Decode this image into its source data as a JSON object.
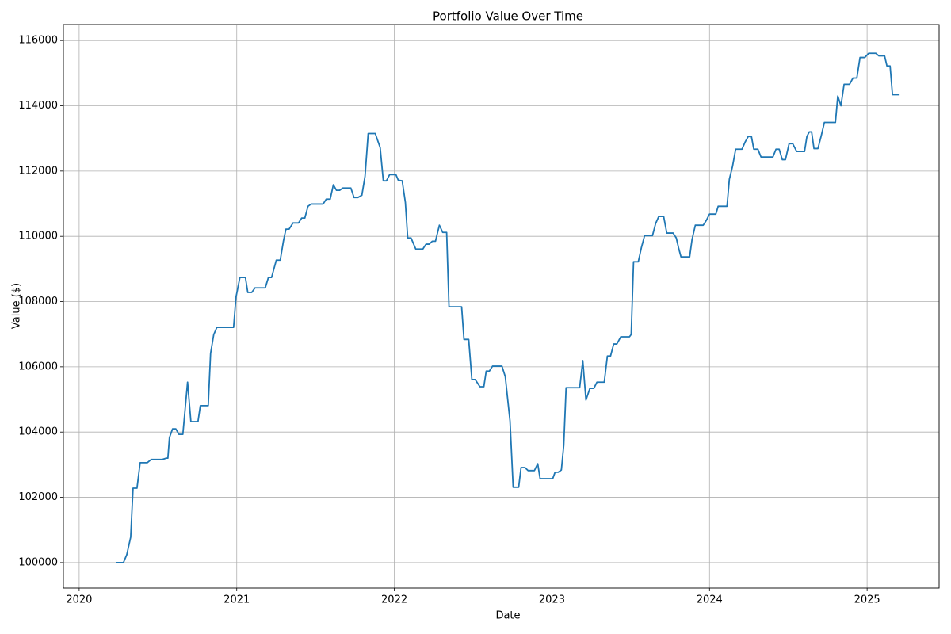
{
  "chart_data": {
    "type": "line",
    "title": "Portfolio Value Over Time",
    "xlabel": "Date",
    "ylabel": "Value ($)",
    "color": "#1f77b4",
    "grid": true,
    "xlim": [
      2019.9,
      2025.457
    ],
    "ylim": [
      99220,
      116490
    ],
    "xticks": [
      2020,
      2021,
      2022,
      2023,
      2024,
      2025
    ],
    "yticks": [
      100000,
      102000,
      104000,
      106000,
      108000,
      110000,
      112000,
      114000,
      116000
    ],
    "x": [
      2020.236,
      2020.281,
      2020.302,
      2020.327,
      2020.342,
      2020.367,
      2020.387,
      2020.432,
      2020.457,
      2020.528,
      2020.553,
      2020.563,
      2020.573,
      2020.593,
      2020.613,
      2020.633,
      2020.658,
      2020.688,
      2020.709,
      2020.754,
      2020.769,
      2020.819,
      2020.834,
      2020.854,
      2020.874,
      2020.98,
      2020.995,
      2021.02,
      2021.055,
      2021.07,
      2021.095,
      2021.116,
      2021.181,
      2021.201,
      2021.221,
      2021.251,
      2021.276,
      2021.296,
      2021.312,
      2021.332,
      2021.357,
      2021.392,
      2021.412,
      2021.432,
      2021.452,
      2021.472,
      2021.548,
      2021.568,
      2021.593,
      2021.613,
      2021.633,
      2021.653,
      2021.673,
      2021.724,
      2021.744,
      2021.769,
      2021.794,
      2021.814,
      2021.834,
      2021.879,
      2021.91,
      2021.93,
      2021.95,
      2021.97,
      2022.01,
      2022.025,
      2022.05,
      2022.07,
      2022.085,
      2022.106,
      2022.136,
      2022.181,
      2022.201,
      2022.221,
      2022.241,
      2022.261,
      2022.286,
      2022.307,
      2022.332,
      2022.347,
      2022.427,
      2022.442,
      2022.472,
      2022.492,
      2022.513,
      2022.543,
      2022.568,
      2022.583,
      2022.603,
      2022.623,
      2022.683,
      2022.704,
      2022.734,
      2022.754,
      2022.789,
      2022.804,
      2022.829,
      2022.849,
      2022.889,
      2022.91,
      2022.925,
      2023.005,
      2023.02,
      2023.04,
      2023.06,
      2023.075,
      2023.09,
      2023.176,
      2023.196,
      2023.216,
      2023.241,
      2023.266,
      2023.286,
      2023.332,
      2023.352,
      2023.372,
      2023.392,
      2023.412,
      2023.437,
      2023.492,
      2023.503,
      2023.518,
      2023.548,
      2023.568,
      2023.588,
      2023.638,
      2023.658,
      2023.678,
      2023.709,
      2023.729,
      2023.769,
      2023.789,
      2023.804,
      2023.819,
      2023.874,
      2023.889,
      2023.91,
      2023.96,
      2023.98,
      2024.0,
      2024.04,
      2024.055,
      2024.111,
      2024.126,
      2024.146,
      2024.166,
      2024.206,
      2024.226,
      2024.246,
      2024.266,
      2024.281,
      2024.307,
      2024.327,
      2024.402,
      2024.422,
      2024.442,
      2024.462,
      2024.482,
      2024.505,
      2024.528,
      2024.553,
      2024.603,
      2024.618,
      2024.633,
      2024.648,
      2024.663,
      2024.688,
      2024.709,
      2024.729,
      2024.799,
      2024.814,
      2024.834,
      2024.854,
      2024.889,
      2024.91,
      2024.935,
      2024.955,
      2024.985,
      2025.01,
      2025.055,
      2025.075,
      2025.111,
      2025.126,
      2025.146,
      2025.161,
      2025.206
    ],
    "values": [
      100000,
      100000,
      100240,
      100780,
      102280,
      102280,
      103060,
      103060,
      103160,
      103160,
      103200,
      103200,
      103830,
      104100,
      104100,
      103930,
      103930,
      105530,
      104320,
      104320,
      104810,
      104810,
      106410,
      106990,
      107210,
      107210,
      108130,
      108740,
      108740,
      108280,
      108280,
      108420,
      108420,
      108740,
      108740,
      109270,
      109270,
      109850,
      110220,
      110220,
      110410,
      110410,
      110560,
      110560,
      110920,
      110990,
      110990,
      111140,
      111140,
      111580,
      111410,
      111410,
      111480,
      111480,
      111190,
      111190,
      111260,
      111840,
      113150,
      113150,
      112720,
      111700,
      111700,
      111890,
      111890,
      111720,
      111700,
      111040,
      109950,
      109950,
      109610,
      109610,
      109760,
      109760,
      109850,
      109850,
      110340,
      110120,
      110120,
      107840,
      107840,
      106840,
      106840,
      105610,
      105610,
      105390,
      105390,
      105870,
      105870,
      106020,
      106020,
      105700,
      104340,
      102310,
      102310,
      102910,
      102910,
      102820,
      102820,
      103030,
      102570,
      102570,
      102770,
      102770,
      102840,
      103590,
      105360,
      105360,
      106190,
      104980,
      105340,
      105340,
      105530,
      105530,
      106330,
      106330,
      106700,
      106700,
      106920,
      106920,
      106990,
      109220,
      109220,
      109660,
      110020,
      110020,
      110390,
      110610,
      110610,
      110100,
      110100,
      109950,
      109640,
      109370,
      109370,
      109900,
      110340,
      110340,
      110490,
      110680,
      110680,
      110920,
      110920,
      111750,
      112140,
      112670,
      112670,
      112890,
      113060,
      113060,
      112670,
      112670,
      112430,
      112430,
      112670,
      112670,
      112350,
      112350,
      112840,
      112840,
      112600,
      112600,
      113060,
      113200,
      113200,
      112690,
      112690,
      113080,
      113490,
      113490,
      114300,
      114000,
      114660,
      114660,
      114850,
      114850,
      115480,
      115480,
      115610,
      115610,
      115530,
      115530,
      115220,
      115220,
      114340,
      114340
    ]
  }
}
